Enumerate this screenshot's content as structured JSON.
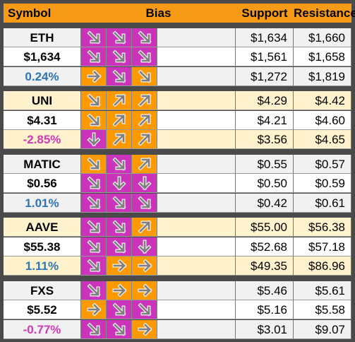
{
  "headers": {
    "symbol": "Symbol",
    "bias": "Bias",
    "support": "Support",
    "resistance": "Resistance"
  },
  "colors": {
    "header": "#f79b16",
    "bias_magenta": "#cc33bb",
    "bias_orange": "#ff9900",
    "positive": "#2e75b6",
    "negative": "#d23ab5"
  },
  "groups": [
    {
      "symbol": "ETH",
      "price": "$1,634",
      "change": "0.24%",
      "change_sign": "pos",
      "bg": [
        "g",
        "w",
        "g"
      ],
      "bias": [
        [
          {
            "c": "m",
            "d": "down-right-icon"
          },
          {
            "c": "m",
            "d": "down-right-icon"
          },
          {
            "c": "m",
            "d": "down-right-icon"
          }
        ],
        [
          {
            "c": "m",
            "d": "down-right-icon"
          },
          {
            "c": "m",
            "d": "down-right-icon"
          },
          {
            "c": "m",
            "d": "down-right-icon"
          }
        ],
        [
          {
            "c": "o",
            "d": "right-arrow-icon"
          },
          {
            "c": "m",
            "d": "down-right-icon"
          },
          {
            "c": "o",
            "d": "down-right-icon"
          }
        ]
      ],
      "support": [
        "$1,634",
        "$1,561",
        "$1,272"
      ],
      "resistance": [
        "$1,660",
        "$1,658",
        "$1,819"
      ]
    },
    {
      "symbol": "UNI",
      "price": "$4.31",
      "change": "-2.85%",
      "change_sign": "neg",
      "bg": [
        "y",
        "w",
        "y"
      ],
      "bias": [
        [
          {
            "c": "o",
            "d": "down-right-icon"
          },
          {
            "c": "o",
            "d": "up-right-icon"
          },
          {
            "c": "o",
            "d": "up-right-icon"
          }
        ],
        [
          {
            "c": "o",
            "d": "down-right-icon"
          },
          {
            "c": "o",
            "d": "up-right-icon"
          },
          {
            "c": "o",
            "d": "up-right-icon"
          }
        ],
        [
          {
            "c": "m",
            "d": "down-arrow-icon"
          },
          {
            "c": "o",
            "d": "up-right-icon"
          },
          {
            "c": "o",
            "d": "up-right-icon"
          }
        ]
      ],
      "support": [
        "$4.29",
        "$4.21",
        "$3.56"
      ],
      "resistance": [
        "$4.42",
        "$4.60",
        "$4.65"
      ]
    },
    {
      "symbol": "MATIC",
      "price": "$0.56",
      "change": "1.01%",
      "change_sign": "pos",
      "bg": [
        "g",
        "w",
        "g"
      ],
      "bias": [
        [
          {
            "c": "o",
            "d": "down-right-icon"
          },
          {
            "c": "m",
            "d": "down-right-icon"
          },
          {
            "c": "o",
            "d": "up-right-icon"
          }
        ],
        [
          {
            "c": "m",
            "d": "down-right-icon"
          },
          {
            "c": "m",
            "d": "down-arrow-icon"
          },
          {
            "c": "m",
            "d": "down-arrow-icon"
          }
        ],
        [
          {
            "c": "m",
            "d": "down-right-icon"
          },
          {
            "c": "m",
            "d": "down-right-icon"
          },
          {
            "c": "m",
            "d": "down-right-icon"
          }
        ]
      ],
      "support": [
        "$0.55",
        "$0.50",
        "$0.42"
      ],
      "resistance": [
        "$0.57",
        "$0.59",
        "$0.61"
      ]
    },
    {
      "symbol": "AAVE",
      "price": "$55.38",
      "change": "1.11%",
      "change_sign": "pos",
      "bg": [
        "y",
        "w",
        "y"
      ],
      "bias": [
        [
          {
            "c": "m",
            "d": "down-right-icon"
          },
          {
            "c": "m",
            "d": "down-right-icon"
          },
          {
            "c": "o",
            "d": "up-right-icon"
          }
        ],
        [
          {
            "c": "m",
            "d": "down-right-icon"
          },
          {
            "c": "m",
            "d": "down-right-icon"
          },
          {
            "c": "m",
            "d": "down-arrow-icon"
          }
        ],
        [
          {
            "c": "m",
            "d": "down-right-icon"
          },
          {
            "c": "o",
            "d": "right-arrow-icon"
          },
          {
            "c": "o",
            "d": "right-arrow-icon"
          }
        ]
      ],
      "support": [
        "$55.00",
        "$52.68",
        "$49.35"
      ],
      "resistance": [
        "$56.38",
        "$57.18",
        "$86.96"
      ]
    },
    {
      "symbol": "FXS",
      "price": "$5.52",
      "change": "-0.77%",
      "change_sign": "neg",
      "bg": [
        "g",
        "w",
        "g"
      ],
      "bias": [
        [
          {
            "c": "m",
            "d": "down-right-icon"
          },
          {
            "c": "o",
            "d": "right-arrow-icon"
          },
          {
            "c": "o",
            "d": "right-arrow-icon"
          }
        ],
        [
          {
            "c": "o",
            "d": "right-arrow-icon"
          },
          {
            "c": "m",
            "d": "down-right-icon"
          },
          {
            "c": "m",
            "d": "down-right-icon"
          }
        ],
        [
          {
            "c": "m",
            "d": "down-right-icon"
          },
          {
            "c": "m",
            "d": "down-right-icon"
          },
          {
            "c": "o",
            "d": "right-arrow-icon"
          }
        ]
      ],
      "support": [
        "$5.46",
        "$5.16",
        "$3.01"
      ],
      "resistance": [
        "$5.61",
        "$5.58",
        "$9.07"
      ]
    }
  ]
}
